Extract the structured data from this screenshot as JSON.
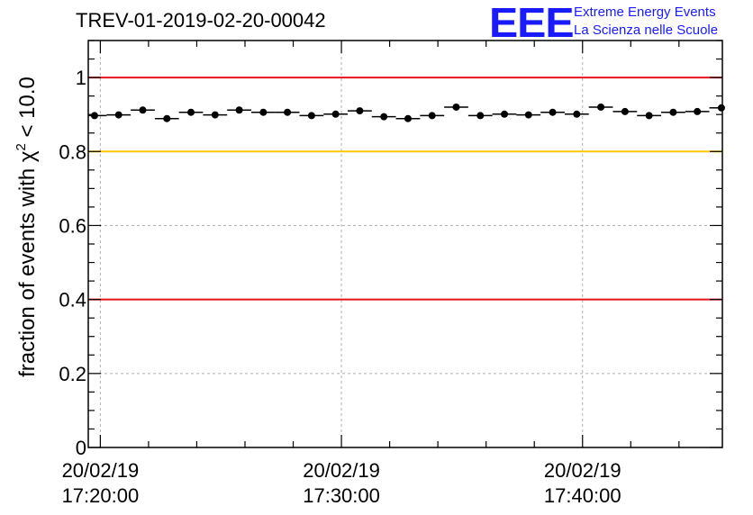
{
  "header": {
    "title": "TREV-01-2019-02-20-00042"
  },
  "logo": {
    "mark": "EEE",
    "line1": "Extreme Energy Events",
    "line2": "La Scienza nelle Scuole"
  },
  "colors": {
    "red_line": "#e8141b",
    "yellow_line": "#ffc800",
    "logo_blue": "#1a1aff",
    "grid": "#b0b0b0"
  },
  "chart_data": {
    "type": "scatter",
    "title": "TREV-01-2019-02-20-00042",
    "xlabel": "",
    "ylabel_prefix": "fraction of events with ",
    "ylabel_symbol": "χ",
    "ylabel_sup": "2",
    "ylabel_suffix": " < 10.0",
    "x_unit": "minutes after 17:20:00 on 20/02/19",
    "xlim": [
      -0.5,
      25.8
    ],
    "ylim": [
      0,
      1.1
    ],
    "x_ticks": [
      {
        "x": 0,
        "date": "20/02/19",
        "time": "17:20:00"
      },
      {
        "x": 10,
        "date": "20/02/19",
        "time": "17:30:00"
      },
      {
        "x": 20,
        "date": "20/02/19",
        "time": "17:40:00"
      }
    ],
    "y_ticks": [
      0,
      0.2,
      0.4,
      0.6,
      0.8,
      1
    ],
    "y_tick_labels": [
      "0",
      "0.2",
      "0.4",
      "0.6",
      "0.8",
      "1"
    ],
    "reference_lines": [
      {
        "y": 1.0,
        "color": "red"
      },
      {
        "y": 0.8,
        "color": "yellow"
      },
      {
        "y": 0.4,
        "color": "red"
      }
    ],
    "bin_width": 1,
    "x": [
      -0.24,
      0.76,
      1.76,
      2.76,
      3.76,
      4.76,
      5.76,
      6.76,
      7.76,
      8.76,
      9.76,
      10.76,
      11.76,
      12.76,
      13.76,
      14.76,
      15.76,
      16.76,
      17.76,
      18.76,
      19.76,
      20.76,
      21.76,
      22.76,
      23.76,
      24.76,
      25.76
    ],
    "values": [
      0.897,
      0.899,
      0.912,
      0.889,
      0.906,
      0.899,
      0.912,
      0.906,
      0.906,
      0.897,
      0.901,
      0.91,
      0.894,
      0.889,
      0.897,
      0.92,
      0.897,
      0.901,
      0.899,
      0.906,
      0.901,
      0.92,
      0.908,
      0.897,
      0.906,
      0.908,
      0.918
    ]
  }
}
